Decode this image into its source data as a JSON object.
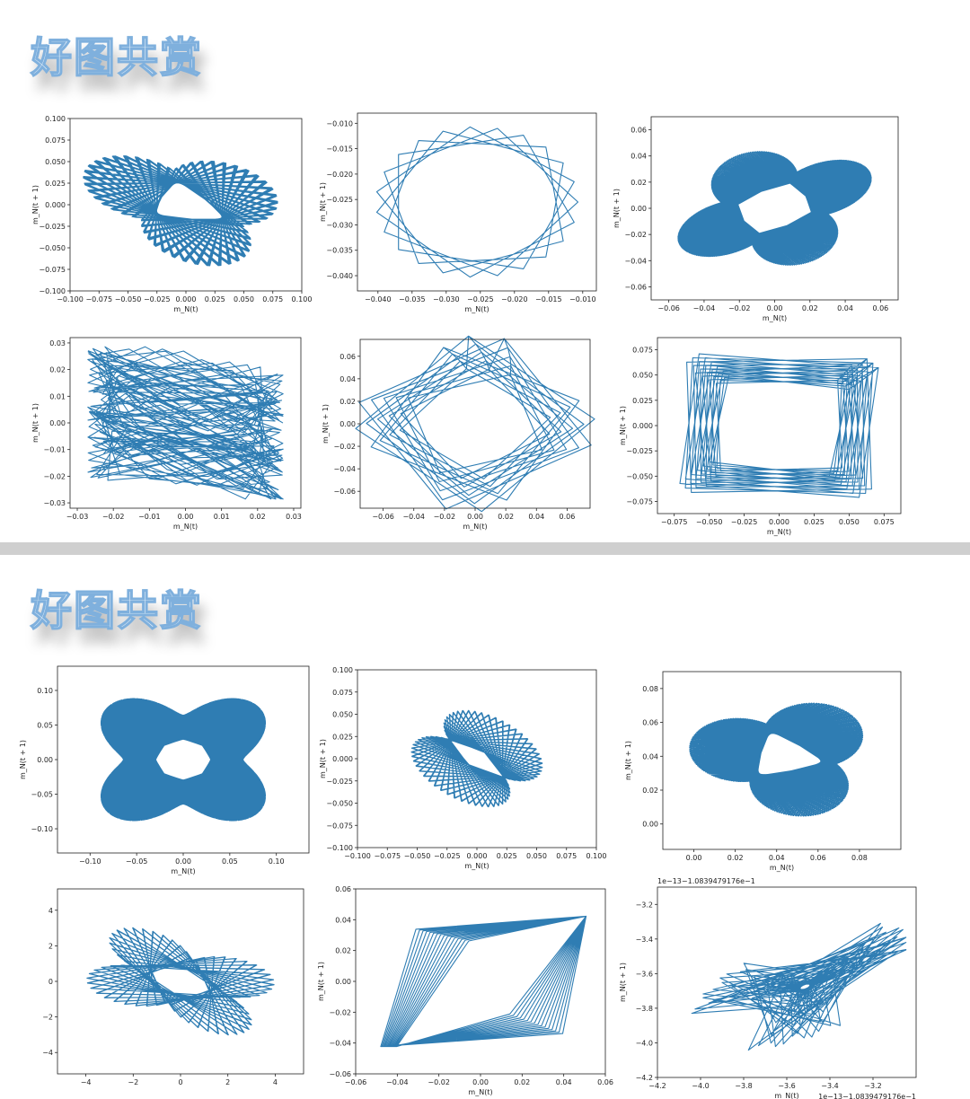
{
  "watermark_text": "好图共赏",
  "colors": {
    "line": "#2f7db3",
    "divider": "#cfcfcf"
  },
  "chart_data": [
    {
      "type": "line",
      "curve_shape": "ellipse-lissajous-tilted",
      "xlabel": "m_N(t)",
      "ylabel": "m_N(t + 1)",
      "xlim": [
        -0.1,
        0.1
      ],
      "ylim": [
        -0.1,
        0.1
      ],
      "xticks": [
        -0.1,
        -0.075,
        -0.05,
        -0.025,
        0.0,
        0.025,
        0.05,
        0.075,
        0.1
      ],
      "xtick_labels": [
        "−0.100",
        "−0.075",
        "−0.050",
        "−0.025",
        "0.000",
        "0.025",
        "0.050",
        "0.075",
        "0.100"
      ],
      "yticks": [
        -0.1,
        -0.075,
        -0.05,
        -0.025,
        0.0,
        0.025,
        0.05,
        0.075,
        0.1
      ],
      "ytick_labels": [
        "−0.100",
        "−0.075",
        "−0.050",
        "−0.025",
        "0.000",
        "0.025",
        "0.050",
        "0.075",
        "0.100"
      ]
    },
    {
      "type": "line",
      "curve_shape": "star-polygon-circle",
      "xlabel": "m_N(t)",
      "ylabel": "m_N(t + 1)",
      "xlim": [
        -0.043,
        -0.008
      ],
      "ylim": [
        -0.043,
        -0.008
      ],
      "xticks": [
        -0.04,
        -0.035,
        -0.03,
        -0.025,
        -0.02,
        -0.015,
        -0.01
      ],
      "xtick_labels": [
        "−0.040",
        "−0.035",
        "−0.030",
        "−0.025",
        "−0.020",
        "−0.015",
        "−0.010"
      ],
      "yticks": [
        -0.04,
        -0.035,
        -0.03,
        -0.025,
        -0.02,
        -0.015,
        -0.01
      ],
      "ytick_labels": [
        "−0.040",
        "−0.035",
        "−0.030",
        "−0.025",
        "−0.020",
        "−0.015",
        "−0.010"
      ]
    },
    {
      "type": "line",
      "curve_shape": "diamond-ribbon",
      "xlabel": "m_N(t)",
      "ylabel": "m_N(t + 1)",
      "xlim": [
        -0.07,
        0.07
      ],
      "ylim": [
        -0.07,
        0.07
      ],
      "xticks": [
        -0.06,
        -0.04,
        -0.02,
        0.0,
        0.02,
        0.04,
        0.06
      ],
      "xtick_labels": [
        "−0.06",
        "−0.04",
        "−0.02",
        "0.00",
        "0.02",
        "0.04",
        "0.06"
      ],
      "yticks": [
        -0.06,
        -0.04,
        -0.02,
        0.0,
        0.02,
        0.04,
        0.06
      ],
      "ytick_labels": [
        "−0.06",
        "−0.04",
        "−0.02",
        "0.00",
        "0.02",
        "0.04",
        "0.06"
      ]
    },
    {
      "type": "line",
      "curve_shape": "zigzag-band",
      "xlabel": "m_N(t)",
      "ylabel": "m_N(t + 1)",
      "xlim": [
        -0.032,
        0.032
      ],
      "ylim": [
        -0.032,
        0.032
      ],
      "xticks": [
        -0.03,
        -0.02,
        -0.01,
        0.0,
        0.01,
        0.02,
        0.03
      ],
      "xtick_labels": [
        "−0.03",
        "−0.02",
        "−0.01",
        "0.00",
        "0.01",
        "0.02",
        "0.03"
      ],
      "yticks": [
        -0.03,
        -0.02,
        -0.01,
        0.0,
        0.01,
        0.02,
        0.03
      ],
      "ytick_labels": [
        "−0.03",
        "−0.02",
        "−0.01",
        "0.00",
        "0.01",
        "0.02",
        "0.03"
      ]
    },
    {
      "type": "line",
      "curve_shape": "rotating-squares",
      "xlabel": "m_N(t)",
      "ylabel": "m_N(t + 1)",
      "xlim": [
        -0.075,
        0.075
      ],
      "ylim": [
        -0.075,
        0.075
      ],
      "xticks": [
        -0.06,
        -0.04,
        -0.02,
        0.0,
        0.02,
        0.04,
        0.06
      ],
      "xtick_labels": [
        "−0.06",
        "−0.04",
        "−0.02",
        "0.00",
        "0.02",
        "0.04",
        "0.06"
      ],
      "yticks": [
        -0.06,
        -0.04,
        -0.02,
        0.0,
        0.02,
        0.04,
        0.06
      ],
      "ytick_labels": [
        "−0.06",
        "−0.04",
        "−0.02",
        "0.00",
        "0.02",
        "0.04",
        "0.06"
      ]
    },
    {
      "type": "line",
      "curve_shape": "square-frame",
      "xlabel": "m_N(t)",
      "ylabel": "m_N(t + 1)",
      "xlim": [
        -0.087,
        0.087
      ],
      "ylim": [
        -0.087,
        0.087
      ],
      "xticks": [
        -0.075,
        -0.05,
        -0.025,
        0.0,
        0.025,
        0.05,
        0.075
      ],
      "xtick_labels": [
        "−0.075",
        "−0.050",
        "−0.025",
        "0.000",
        "0.025",
        "0.050",
        "0.075"
      ],
      "yticks": [
        -0.075,
        -0.05,
        -0.025,
        0.0,
        0.025,
        0.05,
        0.075
      ],
      "ytick_labels": [
        "−0.075",
        "−0.050",
        "−0.025",
        "0.000",
        "0.025",
        "0.050",
        "0.075"
      ]
    },
    {
      "type": "line",
      "curve_shape": "four-point-star-ring",
      "xlabel": "m_N(t)",
      "ylabel": "m_N(t + 1)",
      "xlim": [
        -0.135,
        0.135
      ],
      "ylim": [
        -0.135,
        0.135
      ],
      "xticks": [
        -0.1,
        -0.05,
        0.0,
        0.05,
        0.1
      ],
      "xtick_labels": [
        "−0.10",
        "−0.05",
        "0.00",
        "0.05",
        "0.10"
      ],
      "yticks": [
        -0.1,
        -0.05,
        0.0,
        0.05,
        0.1
      ],
      "ytick_labels": [
        "−0.10",
        "−0.05",
        "0.00",
        "0.05",
        "0.10"
      ]
    },
    {
      "type": "line",
      "curve_shape": "tilted-lens",
      "xlabel": "m_N(t)",
      "ylabel": "m_N(t + 1)",
      "xlim": [
        -0.1,
        0.1
      ],
      "ylim": [
        -0.1,
        0.1
      ],
      "xticks": [
        -0.1,
        -0.075,
        -0.05,
        -0.025,
        0.0,
        0.025,
        0.05,
        0.075,
        0.1
      ],
      "xtick_labels": [
        "−0.100",
        "−0.075",
        "−0.050",
        "−0.025",
        "0.000",
        "0.025",
        "0.050",
        "0.075",
        "0.100"
      ],
      "yticks": [
        -0.1,
        -0.075,
        -0.05,
        -0.025,
        0.0,
        0.025,
        0.05,
        0.075,
        0.1
      ],
      "ytick_labels": [
        "−0.100",
        "−0.075",
        "−0.050",
        "−0.025",
        "0.000",
        "0.025",
        "0.050",
        "0.075",
        "0.100"
      ]
    },
    {
      "type": "line",
      "curve_shape": "offset-ring",
      "xlabel": "m_N(t)",
      "ylabel": "m_N(t + 1)",
      "xlim": [
        -0.015,
        0.1
      ],
      "ylim": [
        -0.015,
        0.09
      ],
      "xticks": [
        0.0,
        0.02,
        0.04,
        0.06,
        0.08
      ],
      "xtick_labels": [
        "0.00",
        "0.02",
        "0.04",
        "0.06",
        "0.08"
      ],
      "yticks": [
        0.0,
        0.02,
        0.04,
        0.06,
        0.08
      ],
      "ytick_labels": [
        "0.00",
        "0.02",
        "0.04",
        "0.06",
        "0.08"
      ]
    },
    {
      "type": "line",
      "curve_shape": "tilted-band-ellipse",
      "xlabel": "",
      "ylabel": "",
      "xlim": [
        -5.2,
        5.2
      ],
      "ylim": [
        -5.2,
        5.2
      ],
      "xticks": [
        -4,
        -2,
        0,
        2,
        4
      ],
      "xtick_labels": [
        "−4",
        "−2",
        "0",
        "2",
        "4"
      ],
      "yticks": [
        -4,
        -2,
        0,
        2,
        4
      ],
      "ytick_labels": [
        "−4",
        "−2",
        "0",
        "2",
        "4"
      ]
    },
    {
      "type": "line",
      "curve_shape": "parallelogram",
      "xlabel": "m_N(t)",
      "ylabel": "m_N(t + 1)",
      "xlim": [
        -0.06,
        0.06
      ],
      "ylim": [
        -0.06,
        0.06
      ],
      "xticks": [
        -0.06,
        -0.04,
        -0.02,
        0.0,
        0.02,
        0.04,
        0.06
      ],
      "xtick_labels": [
        "−0.06",
        "−0.04",
        "−0.02",
        "0.00",
        "0.02",
        "0.04",
        "0.06"
      ],
      "yticks": [
        -0.06,
        -0.04,
        -0.02,
        0.0,
        0.02,
        0.04,
        0.06
      ],
      "ytick_labels": [
        "−0.06",
        "−0.04",
        "−0.02",
        "0.00",
        "0.02",
        "0.04",
        "0.06"
      ]
    },
    {
      "type": "line",
      "curve_shape": "chaotic-cluster",
      "xlabel": "m_N(t)",
      "ylabel": "m_N(t + 1)",
      "xlim": [
        -4.2,
        -3.0
      ],
      "ylim": [
        -4.2,
        -3.1
      ],
      "xticks": [
        -4.2,
        -4.0,
        -3.8,
        -3.6,
        -3.4,
        -3.2
      ],
      "xtick_labels": [
        "−4.2",
        "−4.0",
        "−3.8",
        "−3.6",
        "−3.4",
        "−3.2"
      ],
      "yticks": [
        -4.2,
        -4.0,
        -3.8,
        -3.6,
        -3.4,
        -3.2
      ],
      "ytick_labels": [
        "−4.2",
        "−4.0",
        "−3.8",
        "−3.6",
        "−3.4",
        "−3.2"
      ],
      "x_offset_text": "1e−13−1.0839479176e−1",
      "y_offset_text": "1e−13−1.0839479176e−1"
    }
  ]
}
